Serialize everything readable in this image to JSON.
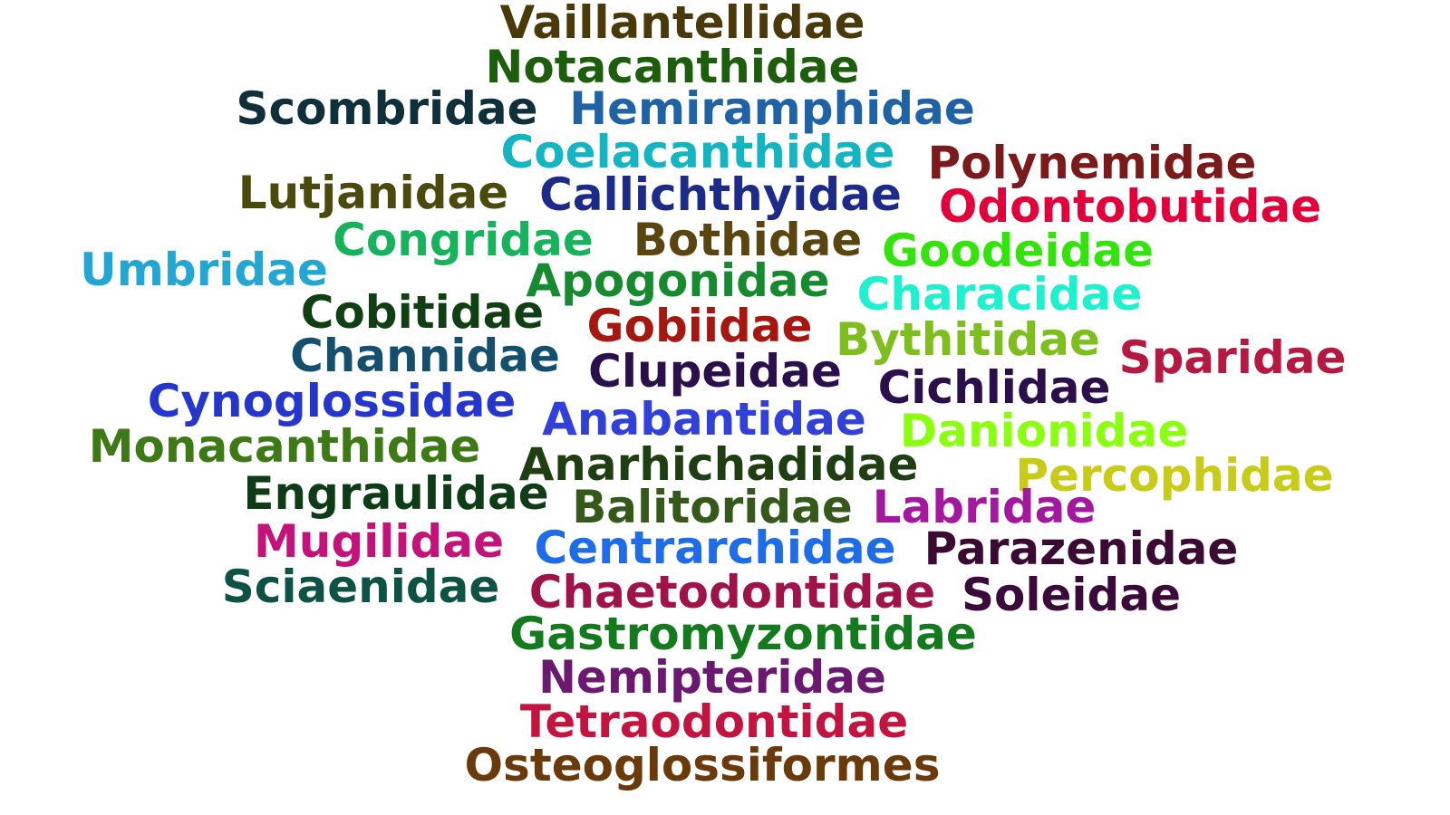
{
  "words": [
    {
      "text": "Vaillantellidae",
      "color": "#4a3a0a"
    },
    {
      "text": "Notacanthidae",
      "color": "#1d5e0d"
    },
    {
      "text": "Scombridae",
      "color": "#0f2f3a"
    },
    {
      "text": "Hemiramphidae",
      "color": "#1f62a6"
    },
    {
      "text": "Coelacanthidae",
      "color": "#13b5c2"
    },
    {
      "text": "Polynemidae",
      "color": "#7a1a1a"
    },
    {
      "text": "Lutjanidae",
      "color": "#4a4a0c"
    },
    {
      "text": "Callichthyidae",
      "color": "#1c2b8a"
    },
    {
      "text": "Odontobutidae",
      "color": "#e3003a"
    },
    {
      "text": "Congridae",
      "color": "#16b25c"
    },
    {
      "text": "Bothidae",
      "color": "#5a4510"
    },
    {
      "text": "Goodeidae",
      "color": "#33e30c"
    },
    {
      "text": "Umbridae",
      "color": "#22a6d4"
    },
    {
      "text": "Apogonidae",
      "color": "#158a2e"
    },
    {
      "text": "Characidae",
      "color": "#1ef0d0"
    },
    {
      "text": "Cobitidae",
      "color": "#0f3f12"
    },
    {
      "text": "Gobiidae",
      "color": "#a6180f"
    },
    {
      "text": "Bythitidae",
      "color": "#7ebe1e"
    },
    {
      "text": "Sparidae",
      "color": "#b51840"
    },
    {
      "text": "Channidae",
      "color": "#14506e"
    },
    {
      "text": "Clupeidae",
      "color": "#2a0f4a"
    },
    {
      "text": "Cichlidae",
      "color": "#2a0f4a"
    },
    {
      "text": "Cynoglossidae",
      "color": "#2536cc"
    },
    {
      "text": "Anabantidae",
      "color": "#3040d8"
    },
    {
      "text": "Danionidae",
      "color": "#8aff10"
    },
    {
      "text": "Monacanthidae",
      "color": "#3d7a16"
    },
    {
      "text": "Anarhichadidae",
      "color": "#1f3f12"
    },
    {
      "text": "Percophidae",
      "color": "#c8cc18"
    },
    {
      "text": "Engraulidae",
      "color": "#0e3c16"
    },
    {
      "text": "Balitoridae",
      "color": "#34591a"
    },
    {
      "text": "Labridae",
      "color": "#a418a0"
    },
    {
      "text": "Mugilidae",
      "color": "#c4127a"
    },
    {
      "text": "Centrarchidae",
      "color": "#1f6ce8"
    },
    {
      "text": "Parazenidae",
      "color": "#3a0a32"
    },
    {
      "text": "Sciaenidae",
      "color": "#0d5244"
    },
    {
      "text": "Chaetodontidae",
      "color": "#a0124a"
    },
    {
      "text": "Soleidae",
      "color": "#3a0a3a"
    },
    {
      "text": "Gastromyzontidae",
      "color": "#147a1e"
    },
    {
      "text": "Nemipteridae",
      "color": "#6a1870"
    },
    {
      "text": "Tetraodontidae",
      "color": "#c2143e"
    },
    {
      "text": "Osteoglossiformes",
      "color": "#6a3a0a"
    }
  ]
}
